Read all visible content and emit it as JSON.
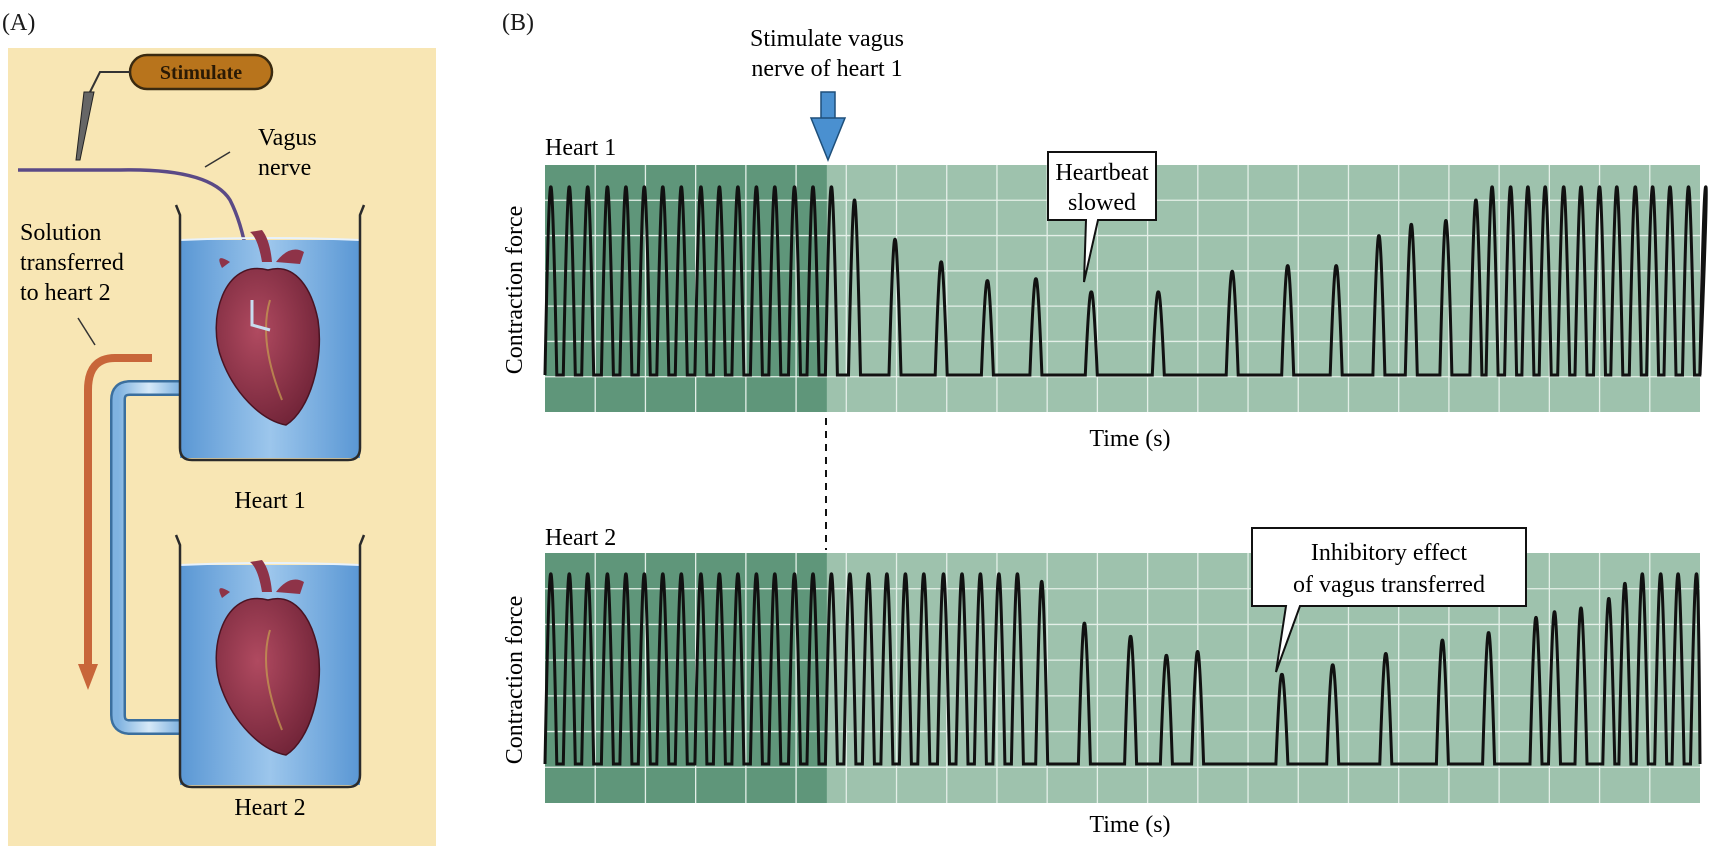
{
  "panel_a": {
    "label": "(A)",
    "stimulate_button": "Stimulate",
    "vagus_label_line1": "Vagus",
    "vagus_label_line2": "nerve",
    "solution_line1": "Solution",
    "solution_line2": "transferred",
    "solution_line3": "to heart 2",
    "heart1_label": "Heart 1",
    "heart2_label": "Heart 2"
  },
  "panel_b": {
    "label": "(B)",
    "stimulus_line1": "Stimulate vagus",
    "stimulus_line2": "nerve of heart 1",
    "heart1": {
      "title": "Heart 1",
      "ylabel": "Contraction force",
      "xlabel": "Time (s)",
      "callout_line1": "Heartbeat",
      "callout_line2": "slowed"
    },
    "heart2": {
      "title": "Heart 2",
      "ylabel": "Contraction force",
      "xlabel": "Time (s)",
      "callout_line1": "Inhibitory effect",
      "callout_line2": "of vagus transferred"
    }
  },
  "colors": {
    "background_a": "#f8e6b4",
    "chart_dark": "#5f967a",
    "chart_light": "#9ec2ad",
    "beaker_water": "#6fa8dc",
    "heart": "#8e3348",
    "arrow_orange": "#c8663a",
    "stimulus_arrow": "#4a90d0",
    "stimulate_button": "#b8741c"
  },
  "chart_data": [
    {
      "type": "line",
      "title": "Heart 1",
      "xlabel": "Time (s)",
      "ylabel": "Contraction force",
      "stimulus_time": 0.244,
      "beat_times": [
        0.005,
        0.021,
        0.037,
        0.054,
        0.07,
        0.086,
        0.102,
        0.118,
        0.135,
        0.151,
        0.167,
        0.183,
        0.199,
        0.216,
        0.232,
        0.248,
        0.268,
        0.303,
        0.343,
        0.383,
        0.425,
        0.473,
        0.531,
        0.595,
        0.643,
        0.685,
        0.722,
        0.75,
        0.78,
        0.806,
        0.82,
        0.836,
        0.851,
        0.866,
        0.882,
        0.897,
        0.913,
        0.928,
        0.944,
        0.959,
        0.974,
        0.99,
        1.005
      ],
      "beat_amplitudes": [
        1,
        1,
        1,
        1,
        1,
        1,
        1,
        1,
        1,
        1,
        1,
        1,
        1,
        1,
        1,
        1,
        0.93,
        0.72,
        0.6,
        0.5,
        0.51,
        0.44,
        0.44,
        0.55,
        0.58,
        0.58,
        0.74,
        0.8,
        0.82,
        0.93,
        1,
        1,
        1,
        1,
        1,
        1,
        1,
        1,
        1,
        1,
        1,
        1,
        1
      ]
    },
    {
      "type": "line",
      "title": "Heart 2",
      "xlabel": "Time (s)",
      "ylabel": "Contraction force",
      "stimulus_time": 0.244,
      "beat_times": [
        0.005,
        0.021,
        0.037,
        0.054,
        0.07,
        0.086,
        0.102,
        0.118,
        0.135,
        0.151,
        0.167,
        0.183,
        0.199,
        0.216,
        0.232,
        0.248,
        0.264,
        0.28,
        0.296,
        0.312,
        0.328,
        0.345,
        0.361,
        0.377,
        0.393,
        0.409,
        0.43,
        0.467,
        0.507,
        0.538,
        0.565,
        0.638,
        0.682,
        0.728,
        0.777,
        0.817,
        0.858,
        0.874,
        0.897,
        0.921,
        0.935,
        0.95,
        0.966,
        0.981,
        0.997
      ],
      "beat_amplitudes": [
        1,
        1,
        1,
        1,
        1,
        1,
        1,
        1,
        1,
        1,
        1,
        1,
        1,
        1,
        1,
        1,
        1,
        1,
        1,
        1,
        1,
        1,
        1,
        1,
        1,
        1,
        0.96,
        0.74,
        0.67,
        0.57,
        0.59,
        0.47,
        0.52,
        0.58,
        0.65,
        0.69,
        0.77,
        0.8,
        0.82,
        0.87,
        0.95,
        1,
        1,
        1,
        1
      ]
    }
  ]
}
